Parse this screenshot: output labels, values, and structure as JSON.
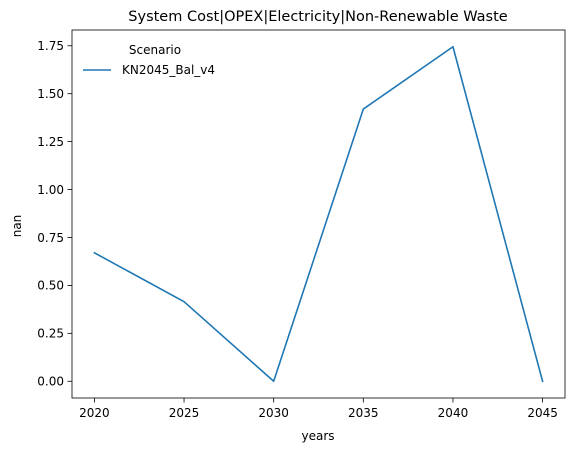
{
  "chart_data": {
    "type": "line",
    "title": "System Cost|OPEX|Electricity|Non-Renewable Waste",
    "xlabel": "years",
    "ylabel": "nan",
    "x": [
      2020,
      2025,
      2030,
      2035,
      2040,
      2045
    ],
    "series": [
      {
        "name": "KN2045_Bal_v4",
        "values": [
          0.67,
          0.415,
          0.0,
          1.42,
          1.745,
          0.0
        ]
      }
    ],
    "xticks": [
      2020,
      2025,
      2030,
      2035,
      2040,
      2045
    ],
    "xtick_labels": [
      "2020",
      "2025",
      "2030",
      "2035",
      "2040",
      "2045"
    ],
    "yticks": [
      0.0,
      0.25,
      0.5,
      0.75,
      1.0,
      1.25,
      1.5,
      1.75
    ],
    "ytick_labels": [
      "0.00",
      "0.25",
      "0.50",
      "0.75",
      "1.00",
      "1.25",
      "1.50",
      "1.75"
    ],
    "xlim": [
      2018.75,
      2046.25
    ],
    "ylim": [
      -0.0873,
      1.8323
    ],
    "grid": false,
    "legend": {
      "title": "Scenario",
      "placement": "top-left"
    },
    "colors": {
      "series": [
        "#1f77b4"
      ],
      "axes": "#000000",
      "background": "#ffffff"
    }
  }
}
